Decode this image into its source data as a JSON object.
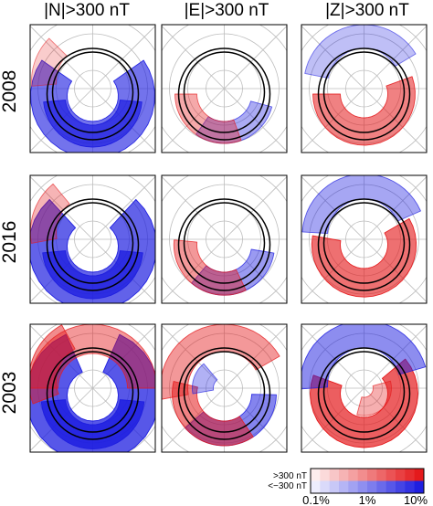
{
  "chart_data": {
    "type": "heatmap",
    "column_titles": [
      {
        "symbol": "N",
        "label": "|N|>300 nT"
      },
      {
        "symbol": "E",
        "label": "|E|>300 nT"
      },
      {
        "symbol": "Z",
        "label": "|Z|>300 nT"
      }
    ],
    "row_labels": [
      "2008",
      "2016",
      "2003"
    ],
    "legend": {
      "positive_label": ">300 nT",
      "negative_label": "<−300 nT",
      "ticks": [
        "0.1%",
        "1%",
        "10%"
      ],
      "scale": "log",
      "positive_color": "#e41a1c",
      "negative_color": "#1f1fe0"
    },
    "panels": [
      {
        "row": "2008",
        "component": "N",
        "neg_intensity": 0.75,
        "pos_intensity": 0.15,
        "dominant": "negative"
      },
      {
        "row": "2008",
        "component": "E",
        "neg_intensity": 0.35,
        "pos_intensity": 0.35,
        "dominant": "mixed"
      },
      {
        "row": "2008",
        "component": "Z",
        "neg_intensity": 0.3,
        "pos_intensity": 0.6,
        "dominant": "positive"
      },
      {
        "row": "2016",
        "component": "N",
        "neg_intensity": 0.9,
        "pos_intensity": 0.35,
        "dominant": "negative"
      },
      {
        "row": "2016",
        "component": "E",
        "neg_intensity": 0.5,
        "pos_intensity": 0.5,
        "dominant": "mixed"
      },
      {
        "row": "2016",
        "component": "Z",
        "neg_intensity": 0.55,
        "pos_intensity": 0.75,
        "dominant": "positive"
      },
      {
        "row": "2003",
        "component": "N",
        "neg_intensity": 1.0,
        "pos_intensity": 0.7,
        "dominant": "negative"
      },
      {
        "row": "2003",
        "component": "E",
        "neg_intensity": 0.7,
        "pos_intensity": 0.7,
        "dominant": "mixed"
      },
      {
        "row": "2003",
        "component": "Z",
        "neg_intensity": 0.8,
        "pos_intensity": 0.9,
        "dominant": "positive"
      }
    ]
  }
}
